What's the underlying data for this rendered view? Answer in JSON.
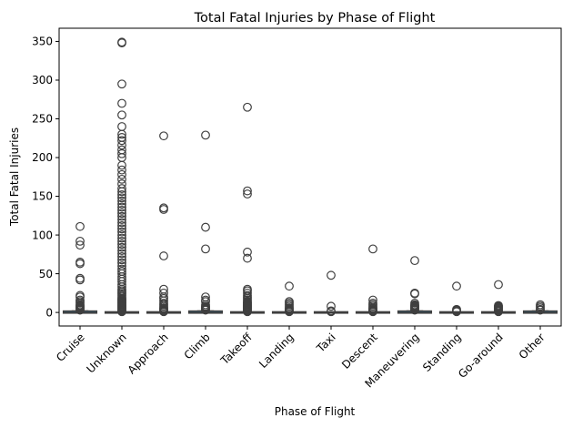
{
  "chart_data": {
    "type": "box",
    "title": "Total Fatal Injuries by Phase of Flight",
    "xlabel": "Phase of Flight",
    "ylabel": "Total Fatal Injuries",
    "ylim": [
      -17.5,
      367
    ],
    "yticks": [
      0,
      50,
      100,
      150,
      200,
      250,
      300,
      350
    ],
    "box_color": "#3274a1",
    "line_color": "#3f3f3f",
    "categories": [
      {
        "name": "Cruise",
        "q1": 0,
        "median": 0,
        "q3": 1,
        "whisker_low": 0,
        "whisker_high": 2,
        "outliers": [
          3,
          4,
          5,
          6,
          7,
          8,
          9,
          10,
          12,
          14,
          16,
          20,
          22,
          42,
          44,
          63,
          65,
          87,
          92,
          111
        ]
      },
      {
        "name": "Unknown",
        "q1": 0,
        "median": 0,
        "q3": 0,
        "whisker_low": 0,
        "whisker_high": 0,
        "outliers": [
          1,
          2,
          3,
          4,
          5,
          6,
          7,
          8,
          9,
          10,
          11,
          12,
          13,
          14,
          15,
          16,
          17,
          18,
          20,
          22,
          24,
          26,
          28,
          30,
          33,
          36,
          40,
          43,
          46,
          50,
          53,
          56,
          60,
          64,
          68,
          72,
          76,
          80,
          84,
          88,
          92,
          96,
          100,
          104,
          108,
          112,
          116,
          120,
          124,
          128,
          132,
          136,
          140,
          144,
          148,
          152,
          156,
          160,
          166,
          172,
          178,
          184,
          190,
          200,
          205,
          210,
          216,
          222,
          226,
          230,
          240,
          255,
          270,
          295,
          348,
          349
        ]
      },
      {
        "name": "Approach",
        "q1": 0,
        "median": 0,
        "q3": 0,
        "whisker_low": 0,
        "whisker_high": 0,
        "outliers": [
          1,
          2,
          3,
          4,
          5,
          6,
          8,
          10,
          12,
          15,
          18,
          20,
          25,
          30,
          73,
          133,
          135,
          228
        ]
      },
      {
        "name": "Climb",
        "q1": 0,
        "median": 0,
        "q3": 1,
        "whisker_low": 0,
        "whisker_high": 2,
        "outliers": [
          3,
          4,
          5,
          6,
          7,
          8,
          10,
          14,
          16,
          20,
          82,
          110,
          229
        ]
      },
      {
        "name": "Takeoff",
        "q1": 0,
        "median": 0,
        "q3": 0,
        "whisker_low": 0,
        "whisker_high": 0,
        "outliers": [
          1,
          2,
          3,
          4,
          5,
          6,
          7,
          8,
          9,
          10,
          11,
          12,
          13,
          14,
          16,
          18,
          20,
          22,
          25,
          28,
          30,
          70,
          78,
          153,
          157,
          265
        ]
      },
      {
        "name": "Landing",
        "q1": 0,
        "median": 0,
        "q3": 0,
        "whisker_low": 0,
        "whisker_high": 0,
        "outliers": [
          1,
          2,
          3,
          4,
          5,
          6,
          8,
          10,
          12,
          14,
          34
        ]
      },
      {
        "name": "Taxi",
        "q1": 0,
        "median": 0,
        "q3": 0,
        "whisker_low": 0,
        "whisker_high": 0,
        "outliers": [
          1,
          2,
          8,
          48
        ]
      },
      {
        "name": "Descent",
        "q1": 0,
        "median": 0,
        "q3": 0,
        "whisker_low": 0,
        "whisker_high": 0,
        "outliers": [
          1,
          2,
          3,
          4,
          5,
          6,
          8,
          10,
          12,
          16,
          82
        ]
      },
      {
        "name": "Maneuvering",
        "q1": 0,
        "median": 0,
        "q3": 1,
        "whisker_low": 0,
        "whisker_high": 2,
        "outliers": [
          3,
          4,
          5,
          6,
          7,
          8,
          9,
          10,
          12,
          24,
          25,
          67
        ]
      },
      {
        "name": "Standing",
        "q1": 0,
        "median": 0,
        "q3": 0,
        "whisker_low": 0,
        "whisker_high": 0,
        "outliers": [
          1,
          2,
          3,
          4,
          34
        ]
      },
      {
        "name": "Go-around",
        "q1": 0,
        "median": 0,
        "q3": 0,
        "whisker_low": 0,
        "whisker_high": 0,
        "outliers": [
          1,
          2,
          3,
          4,
          5,
          6,
          7,
          8,
          9,
          36
        ]
      },
      {
        "name": "Other",
        "q1": 0,
        "median": 0,
        "q3": 1,
        "whisker_low": 0,
        "whisker_high": 2,
        "outliers": [
          3,
          4,
          6,
          8,
          10
        ]
      }
    ]
  }
}
